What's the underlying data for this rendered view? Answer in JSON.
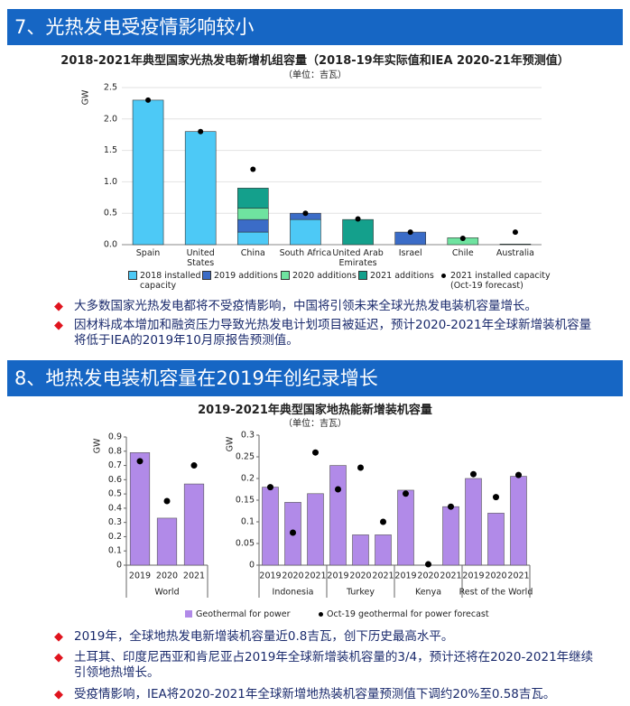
{
  "sections": [
    {
      "heading": "7、光热发电受疫情影响较小",
      "bullets": [
        "大多数国家光热发电都将不受疫情影响，中国将引领未来全球光热发电装机容量增长。",
        "因材料成本增加和融资压力导致光热发电计划项目被延迟，预计2020-2021年全球新增装机容量将低于IEA的2019年10月原报告预测值。"
      ]
    },
    {
      "heading": "8、地热发电装机容量在2019年创纪录增长",
      "bullets": [
        "2019年，全球地热发电新增装机容量近0.8吉瓦，创下历史最高水平。",
        "土耳其、印度尼西亚和肯尼亚占2019年全球新增装机容量的3/4，预计还将在2020-2021年继续引领地热增长。",
        "受疫情影响，IEA将2020-2021年全球新增地热装机容量预测值下调约20%至0.58吉瓦。"
      ]
    }
  ],
  "chart_data": [
    {
      "type": "bar",
      "stacked": true,
      "title": "2018-2021年典型国家光热发电新增机组容量（2018-19年实际值和IEA 2020-21年预测值）",
      "subtitle": "（单位：吉瓦）",
      "ylabel": "GW",
      "categories": [
        "Spain",
        "United States",
        "China",
        "South Africa",
        "United Arab Emirates",
        "Israel",
        "Chile",
        "Australia"
      ],
      "series": [
        {
          "name": "2018 installed capacity",
          "type": "bar",
          "color": "#4dc9f6",
          "values": [
            2.3,
            1.8,
            0.2,
            0.4,
            0,
            0,
            0,
            0
          ]
        },
        {
          "name": "2019 additions",
          "type": "bar",
          "color": "#3b6cc7",
          "values": [
            0,
            0,
            0.2,
            0.1,
            0,
            0.2,
            0,
            0
          ]
        },
        {
          "name": "2020 additions",
          "type": "bar",
          "color": "#6fe3a0",
          "values": [
            0,
            0,
            0.18,
            0,
            0,
            0,
            0.11,
            0
          ]
        },
        {
          "name": "2021 additions",
          "type": "bar",
          "color": "#14a08c",
          "values": [
            0,
            0,
            0.32,
            0,
            0.4,
            0,
            0,
            0.01
          ]
        },
        {
          "name": "2021 installed capacity (Oct-19 forecast)",
          "type": "scatter",
          "color": "#000000",
          "values": [
            2.3,
            1.8,
            1.2,
            0.5,
            0.41,
            0.2,
            0.1,
            0.2
          ]
        }
      ],
      "ylim": [
        0,
        2.5
      ],
      "yticks": [
        {
          "value": 0,
          "label": "0.0"
        },
        0.5,
        {
          "value": 1,
          "label": "1.0"
        },
        1.5,
        {
          "value": 2,
          "label": "2.0"
        },
        2.5
      ],
      "grid": true
    },
    {
      "type": "bar",
      "title": "2019-2021年典型国家地热能新增装机容量",
      "subtitle": "（单位：吉瓦）",
      "legend": [
        {
          "name": "Geothermal for power",
          "type": "bar",
          "color": "#b18ae8"
        },
        {
          "name": "Oct-19 geothermal for power forecast",
          "type": "scatter",
          "color": "#000000"
        }
      ],
      "panels": [
        {
          "ylabel": "GW",
          "groups": [
            {
              "name": "World",
              "categories": [
                "2019",
                "2020",
                "2021"
              ]
            }
          ],
          "ylim": [
            0,
            0.9
          ],
          "yticks": [
            0,
            0.1,
            0.2,
            0.3,
            0.4,
            0.5,
            0.6,
            0.7,
            0.8,
            0.9
          ],
          "series": [
            {
              "values": [
                0.79,
                0.33,
                0.57
              ]
            },
            {
              "values": [
                0.73,
                0.45,
                0.7
              ]
            }
          ]
        },
        {
          "ylabel": "GW",
          "groups": [
            {
              "name": "Indonesia",
              "categories": [
                "2019",
                "2020",
                "2021"
              ]
            },
            {
              "name": "Turkey",
              "categories": [
                "2019",
                "2020",
                "2021"
              ]
            },
            {
              "name": "Kenya",
              "categories": [
                "2019",
                "2020",
                "2021"
              ]
            },
            {
              "name": "Rest of the World",
              "categories": [
                "2019",
                "2020",
                "2021"
              ]
            }
          ],
          "ylim": [
            0,
            0.3
          ],
          "yticks": [
            0,
            0.05,
            0.1,
            0.15,
            0.2,
            0.25,
            0.3
          ],
          "series": [
            {
              "values": [
                0.18,
                0.145,
                0.165,
                0.23,
                0.07,
                0.07,
                0.173,
                null,
                0.135,
                0.2,
                0.12,
                0.205
              ]
            },
            {
              "values": [
                0.18,
                0.075,
                0.26,
                0.175,
                0.225,
                0.1,
                0.165,
                0.002,
                0.135,
                0.21,
                0.157,
                0.208
              ]
            }
          ]
        }
      ]
    }
  ]
}
